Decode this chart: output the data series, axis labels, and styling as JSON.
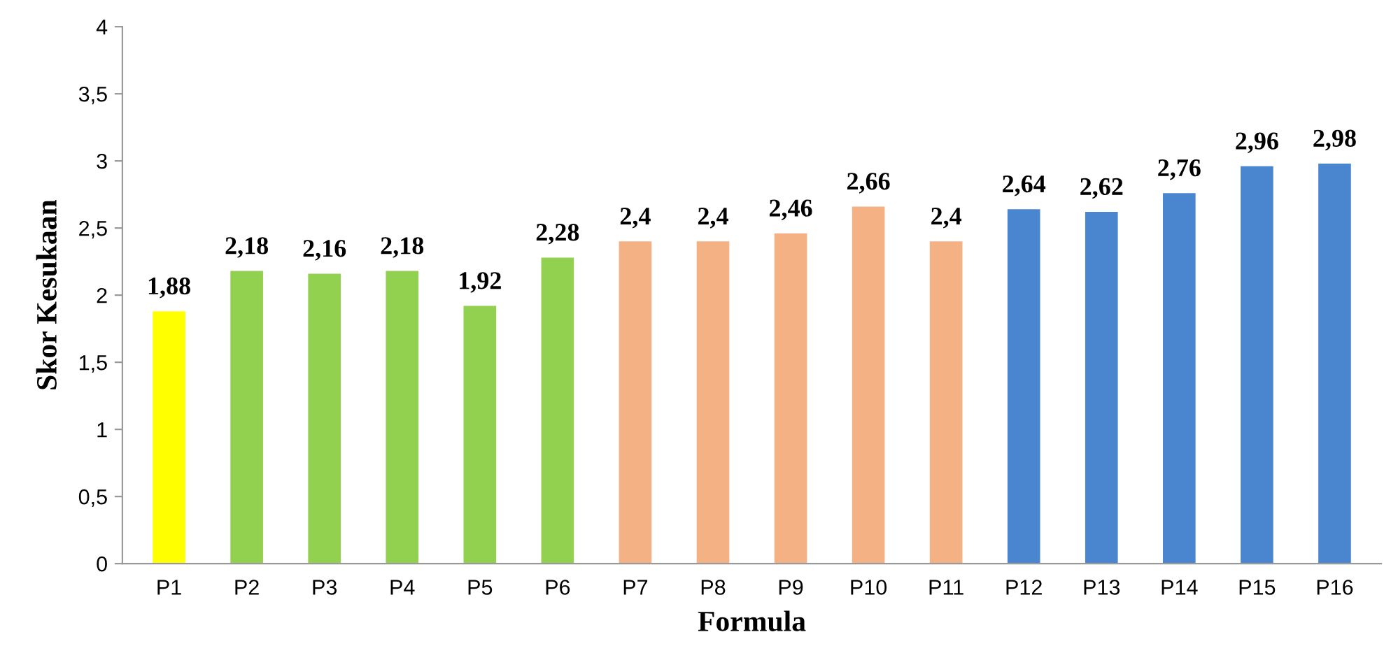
{
  "chart_data": {
    "type": "bar",
    "xlabel": "Formula",
    "ylabel": "Skor Kesukaan",
    "categories": [
      "P1",
      "P2",
      "P3",
      "P4",
      "P5",
      "P6",
      "P7",
      "P8",
      "P9",
      "P10",
      "P11",
      "P12",
      "P13",
      "P14",
      "P15",
      "P16"
    ],
    "values": [
      1.88,
      2.18,
      2.16,
      2.18,
      1.92,
      2.28,
      2.4,
      2.4,
      2.46,
      2.66,
      2.4,
      2.64,
      2.62,
      2.76,
      2.96,
      2.98
    ],
    "colors": [
      "#ffff00",
      "#92d050",
      "#92d050",
      "#92d050",
      "#92d050",
      "#92d050",
      "#f4b183",
      "#f4b183",
      "#f4b183",
      "#f4b183",
      "#f4b183",
      "#4a86d0",
      "#4a86d0",
      "#4a86d0",
      "#4a86d0",
      "#4a86d0"
    ],
    "value_labels": [
      "1,88",
      "2,18",
      "2,16",
      "2,18",
      "1,92",
      "2,28",
      "2,4",
      "2,4",
      "2,46",
      "2,66",
      "2,4",
      "2,64",
      "2,62",
      "2,76",
      "2,96",
      "2,98"
    ],
    "ylim": [
      0,
      4
    ],
    "yticks": [
      0,
      {
        "value": 0.5,
        "label": "0,5"
      },
      1,
      {
        "value": 1.5,
        "label": "1,5"
      },
      2,
      {
        "value": 2.5,
        "label": "2,5"
      },
      3,
      {
        "value": 3.5,
        "label": "3,5"
      },
      4
    ],
    "grid": false,
    "legend": false
  }
}
